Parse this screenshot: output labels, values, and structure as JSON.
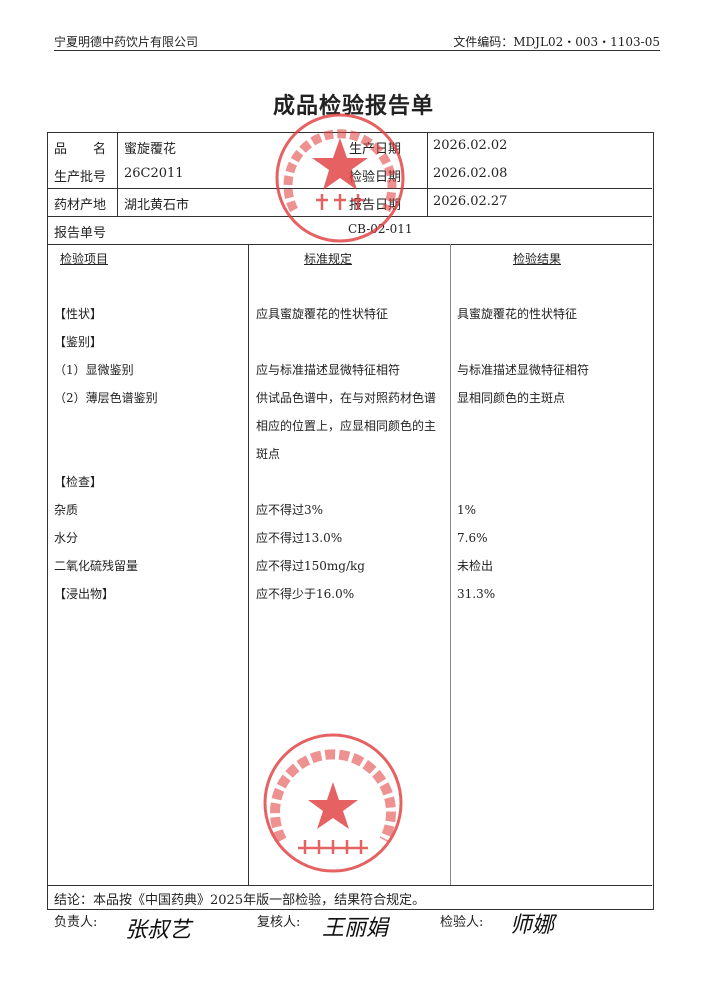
{
  "header": {
    "company": "宁夏明德中药饮片有限公司",
    "doc_code": "文件编码：MDJL02・003・1103-05"
  },
  "title": "成品检验报告单",
  "info": {
    "product_name_label": "品　　名",
    "product_name": "蜜旋覆花",
    "batch_label": "生产批号",
    "batch": "26C2011",
    "origin_label": "药材产地",
    "origin": "湖北黄石市",
    "prod_date_label": "生产日期",
    "prod_date": "2026.02.02",
    "test_date_label": "检验日期",
    "test_date": "2026.02.08",
    "report_date_label": "报告日期",
    "report_date": "2026.02.27",
    "report_no_label": "报告单号",
    "report_no": "CB-02-011"
  },
  "columns": [
    "检验项目",
    "标准规定",
    "检验结果"
  ],
  "rows": [
    {
      "item": "【性状】",
      "standard": "应具蜜旋覆花的性状特征",
      "result": "具蜜旋覆花的性状特征"
    },
    {
      "item": "【鉴别】",
      "standard": "",
      "result": ""
    },
    {
      "item": "（1）显微鉴别",
      "standard": "应与标准描述显微特征相符",
      "result": "与标准描述显微特征相符"
    },
    {
      "item": "（2）薄层色谱鉴别",
      "standard": "供试品色谱中，在与对照药材色谱",
      "result": "显相同颜色的主斑点"
    },
    {
      "item": "",
      "standard": "相应的位置上，应显相同颜色的主",
      "result": ""
    },
    {
      "item": "",
      "standard": "斑点",
      "result": ""
    },
    {
      "item": "【检查】",
      "standard": "",
      "result": ""
    },
    {
      "item": "杂质",
      "standard": "应不得过3%",
      "result": "1%"
    },
    {
      "item": "水分",
      "standard": "应不得过13.0%",
      "result": "7.6%"
    },
    {
      "item": "二氧化硫残留量",
      "standard": "应不得过150mg/kg",
      "result": "未检出"
    },
    {
      "item": "【浸出物】",
      "standard": "应不得少于16.0%",
      "result": "31.3%"
    }
  ],
  "conclusion": "结论：本品按《中国药典》2025年版一部检验，结果符合规定。",
  "signatures": {
    "responsible_label": "负责人:",
    "responsible": "张叔艺",
    "reviewer_label": "复核人:",
    "reviewer": "王丽娟",
    "inspector_label": "检验人:",
    "inspector": "师娜"
  },
  "stamps": {
    "quality_dept": "宁夏明德中药饮片有限公司 质量部",
    "qc_seal": "宁夏明德中药饮片有限公司 质检专用章"
  },
  "colors": {
    "stamp": "#e03a3a"
  }
}
